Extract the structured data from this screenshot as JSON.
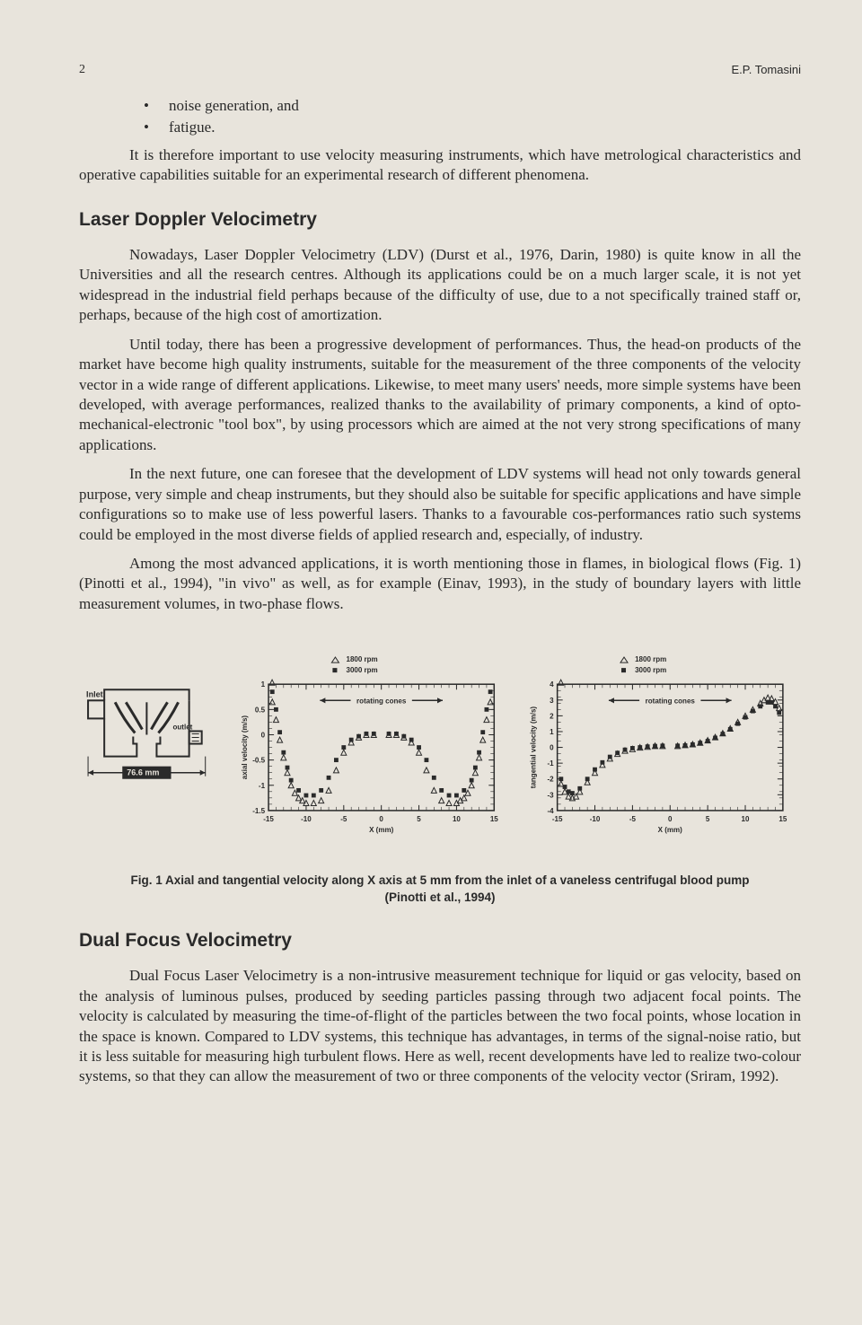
{
  "page": {
    "number": "2",
    "author": "E.P. Tomasini"
  },
  "bullets": [
    "noise generation, and",
    "fatigue."
  ],
  "intro_para": "It is therefore important to use velocity measuring instruments, which have metrological characteristics and operative capabilities suitable for an experimental research of different phenomena.",
  "section1": {
    "heading": "Laser Doppler Velocimetry",
    "p1": "Nowadays, Laser Doppler Velocimetry (LDV) (Durst et al., 1976, Darin, 1980) is quite know in all the Universities and all the research centres. Although its applications could be on a much larger scale, it is not yet widespread in the industrial field perhaps because of the difficulty of use, due to a not specifically trained staff or, perhaps, because of the high cost of amortization.",
    "p2": "Until today, there has been a progressive development of performances. Thus, the head-on products of the market have become high quality instruments, suitable for the measurement of the three components of the velocity vector in a wide range of different applications. Likewise, to meet many users' needs, more simple systems have been developed, with average performances, realized thanks to the availability of primary components, a kind of opto-mechanical-electronic \"tool box\", by using processors which are aimed at the not very strong specifications of many applications.",
    "p3": "In the next future, one can foresee that the development of LDV systems will head not only towards general purpose, very simple and cheap instruments, but they should also be suitable for specific applications and have simple configurations so to make use of less powerful lasers. Thanks to a favourable cos-performances ratio such systems could be employed in the most diverse fields of applied research and, especially, of industry.",
    "p4": "Among the most advanced applications, it is worth mentioning those in flames, in biological flows (Fig. 1) (Pinotti et al., 1994), \"in vivo\" as well, as for example (Einav, 1993), in the study of boundary layers with little measurement volumes, in two-phase flows."
  },
  "figure1": {
    "caption_line1": "Fig. 1   Axial and tangential velocity along X axis at 5 mm from the inlet of a vaneless centrifugal blood pump",
    "caption_line2": "(Pinotti et al., 1994)",
    "diagram": {
      "inlet_label": "Inlet",
      "outlet_label": "outlet",
      "dim_label": "76.6 mm"
    },
    "chart_left": {
      "type": "scatter",
      "legend": [
        {
          "marker": "triangle",
          "label": "1800 rpm",
          "color": "#2a2a2a"
        },
        {
          "marker": "square",
          "label": "3000 rpm",
          "color": "#2a2a2a"
        }
      ],
      "annotation": "rotating cones",
      "ylabel": "axial velocity (m/s)",
      "xlabel": "X (mm)",
      "xlim": [
        -15,
        15
      ],
      "ylim": [
        -1.5,
        1.0
      ],
      "xticks": [
        -15,
        -10,
        -5,
        0,
        5,
        10,
        15
      ],
      "yticks": [
        -1.5,
        -1,
        -0.5,
        0,
        0.5,
        1
      ],
      "series_1800": [
        [
          -14.5,
          0.65
        ],
        [
          -14,
          0.3
        ],
        [
          -13.5,
          -0.1
        ],
        [
          -13,
          -0.45
        ],
        [
          -12.5,
          -0.75
        ],
        [
          -12,
          -1.0
        ],
        [
          -11.5,
          -1.15
        ],
        [
          -11,
          -1.25
        ],
        [
          -10.5,
          -1.3
        ],
        [
          -10,
          -1.35
        ],
        [
          -9,
          -1.35
        ],
        [
          -8,
          -1.3
        ],
        [
          -7,
          -1.1
        ],
        [
          -6,
          -0.7
        ],
        [
          -5,
          -0.35
        ],
        [
          -4,
          -0.15
        ],
        [
          -3,
          -0.05
        ],
        [
          -2,
          0
        ],
        [
          -1,
          0
        ],
        [
          1,
          0
        ],
        [
          2,
          0
        ],
        [
          3,
          -0.05
        ],
        [
          4,
          -0.15
        ],
        [
          5,
          -0.35
        ],
        [
          6,
          -0.7
        ],
        [
          7,
          -1.1
        ],
        [
          8,
          -1.3
        ],
        [
          9,
          -1.35
        ],
        [
          10,
          -1.35
        ],
        [
          10.5,
          -1.3
        ],
        [
          11,
          -1.25
        ],
        [
          11.5,
          -1.15
        ],
        [
          12,
          -1.0
        ],
        [
          12.5,
          -0.75
        ],
        [
          13,
          -0.45
        ],
        [
          13.5,
          -0.1
        ],
        [
          14,
          0.3
        ],
        [
          14.5,
          0.65
        ]
      ],
      "series_3000": [
        [
          -14.5,
          0.85
        ],
        [
          -14,
          0.5
        ],
        [
          -13.5,
          0.05
        ],
        [
          -13,
          -0.35
        ],
        [
          -12.5,
          -0.65
        ],
        [
          -12,
          -0.9
        ],
        [
          -11,
          -1.1
        ],
        [
          -10,
          -1.2
        ],
        [
          -9,
          -1.2
        ],
        [
          -8,
          -1.1
        ],
        [
          -7,
          -0.85
        ],
        [
          -6,
          -0.5
        ],
        [
          -5,
          -0.25
        ],
        [
          -4,
          -0.1
        ],
        [
          -3,
          -0.03
        ],
        [
          -2,
          0.02
        ],
        [
          -1,
          0.02
        ],
        [
          1,
          0.02
        ],
        [
          2,
          0.02
        ],
        [
          3,
          -0.03
        ],
        [
          4,
          -0.1
        ],
        [
          5,
          -0.25
        ],
        [
          6,
          -0.5
        ],
        [
          7,
          -0.85
        ],
        [
          8,
          -1.1
        ],
        [
          9,
          -1.2
        ],
        [
          10,
          -1.2
        ],
        [
          11,
          -1.1
        ],
        [
          12,
          -0.9
        ],
        [
          12.5,
          -0.65
        ],
        [
          13,
          -0.35
        ],
        [
          13.5,
          0.05
        ],
        [
          14,
          0.5
        ],
        [
          14.5,
          0.85
        ]
      ],
      "marker_size": 3,
      "axis_color": "#2a2a2a",
      "background_color": "#e8e4dc",
      "font_size_ticks": 8,
      "font_size_label": 8
    },
    "chart_right": {
      "type": "scatter",
      "legend": [
        {
          "marker": "triangle",
          "label": "1800 rpm",
          "color": "#2a2a2a"
        },
        {
          "marker": "square",
          "label": "3000 rpm",
          "color": "#2a2a2a"
        }
      ],
      "annotation": "rotating cones",
      "ylabel": "tangential velocity (m/s)",
      "xlabel": "X (mm)",
      "xlim": [
        -15,
        15
      ],
      "ylim": [
        -4,
        4
      ],
      "xticks": [
        -15,
        -10,
        -5,
        0,
        5,
        10,
        15
      ],
      "yticks": [
        -4,
        -3,
        -2,
        -1,
        0,
        1,
        2,
        3,
        4
      ],
      "series_1800": [
        [
          -14.5,
          -2.3
        ],
        [
          -14,
          -2.8
        ],
        [
          -13.5,
          -3.1
        ],
        [
          -13,
          -3.2
        ],
        [
          -12.5,
          -3.1
        ],
        [
          -12,
          -2.8
        ],
        [
          -11,
          -2.2
        ],
        [
          -10,
          -1.6
        ],
        [
          -9,
          -1.1
        ],
        [
          -8,
          -0.7
        ],
        [
          -7,
          -0.4
        ],
        [
          -6,
          -0.2
        ],
        [
          -5,
          -0.1
        ],
        [
          -4,
          0
        ],
        [
          -3,
          0.05
        ],
        [
          -2,
          0.1
        ],
        [
          -1,
          0.1
        ],
        [
          1,
          0.1
        ],
        [
          2,
          0.15
        ],
        [
          3,
          0.2
        ],
        [
          4,
          0.3
        ],
        [
          5,
          0.45
        ],
        [
          6,
          0.65
        ],
        [
          7,
          0.9
        ],
        [
          8,
          1.2
        ],
        [
          9,
          1.6
        ],
        [
          10,
          2.0
        ],
        [
          11,
          2.4
        ],
        [
          12,
          2.8
        ],
        [
          12.5,
          3.0
        ],
        [
          13,
          3.15
        ],
        [
          13.5,
          3.1
        ],
        [
          14,
          2.9
        ],
        [
          14.5,
          2.5
        ]
      ],
      "series_3000": [
        [
          -14.5,
          -2.0
        ],
        [
          -14,
          -2.5
        ],
        [
          -13.5,
          -2.8
        ],
        [
          -13,
          -2.9
        ],
        [
          -12,
          -2.6
        ],
        [
          -11,
          -2.0
        ],
        [
          -10,
          -1.4
        ],
        [
          -9,
          -0.95
        ],
        [
          -8,
          -0.6
        ],
        [
          -7,
          -0.35
        ],
        [
          -6,
          -0.15
        ],
        [
          -5,
          -0.05
        ],
        [
          -4,
          0
        ],
        [
          -3,
          0.05
        ],
        [
          -2,
          0.08
        ],
        [
          -1,
          0.1
        ],
        [
          1,
          0.1
        ],
        [
          2,
          0.12
        ],
        [
          3,
          0.18
        ],
        [
          4,
          0.28
        ],
        [
          5,
          0.4
        ],
        [
          6,
          0.6
        ],
        [
          7,
          0.85
        ],
        [
          8,
          1.15
        ],
        [
          9,
          1.5
        ],
        [
          10,
          1.9
        ],
        [
          11,
          2.3
        ],
        [
          12,
          2.6
        ],
        [
          13,
          2.85
        ],
        [
          13.5,
          2.85
        ],
        [
          14,
          2.6
        ],
        [
          14.5,
          2.2
        ]
      ],
      "marker_size": 3,
      "axis_color": "#2a2a2a",
      "background_color": "#e8e4dc",
      "font_size_ticks": 8,
      "font_size_label": 8
    }
  },
  "section2": {
    "heading": "Dual Focus Velocimetry",
    "p1": "Dual Focus Laser Velocimetry is a non-intrusive measurement technique for liquid or gas velocity, based on the analysis of luminous pulses, produced by seeding particles passing through two adjacent focal points. The velocity is calculated by measuring  the time-of-flight of the particles between the two focal points, whose location in the space is known. Compared to LDV systems, this technique has advantages, in terms of the signal-noise ratio, but it is less suitable for measuring high turbulent flows. Here as well, recent developments have led to realize two-colour systems, so that they can allow the measurement of two or three components of the velocity vector (Sriram, 1992)."
  }
}
